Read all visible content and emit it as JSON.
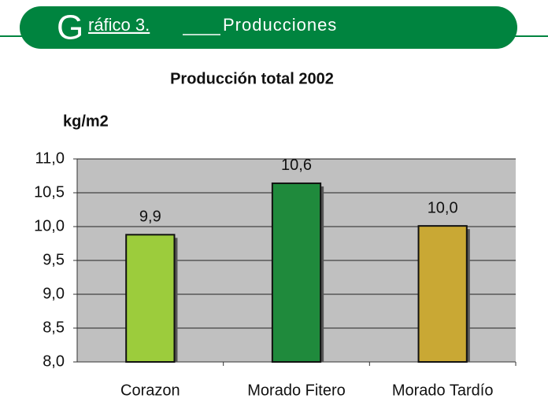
{
  "header": {
    "initial": "G",
    "label": "ráfico 3.",
    "title": "Producciones"
  },
  "chart_data": {
    "type": "bar",
    "title": "Producción total 2002",
    "y_label": "kg/m2",
    "categories": [
      "Corazon",
      "Morado Fitero",
      "Morado Tardío"
    ],
    "values": [
      9.88,
      10.64,
      10.01
    ],
    "value_labels": [
      "9,9",
      "10,6",
      "10,0"
    ],
    "colors": [
      "#9ccc3c",
      "#1f8a3c",
      "#c9a834"
    ],
    "ylim": [
      8,
      11
    ],
    "yticks": [
      {
        "value": 8,
        "label": "8,0"
      },
      {
        "value": 8.5,
        "label": "8,5"
      },
      {
        "value": 9,
        "label": "9,0"
      },
      {
        "value": 9.5,
        "label": "9,5"
      },
      {
        "value": 10,
        "label": "10,0"
      },
      {
        "value": 10.5,
        "label": "10,5"
      },
      {
        "value": 11,
        "label": "11,0"
      }
    ],
    "grid": true
  }
}
